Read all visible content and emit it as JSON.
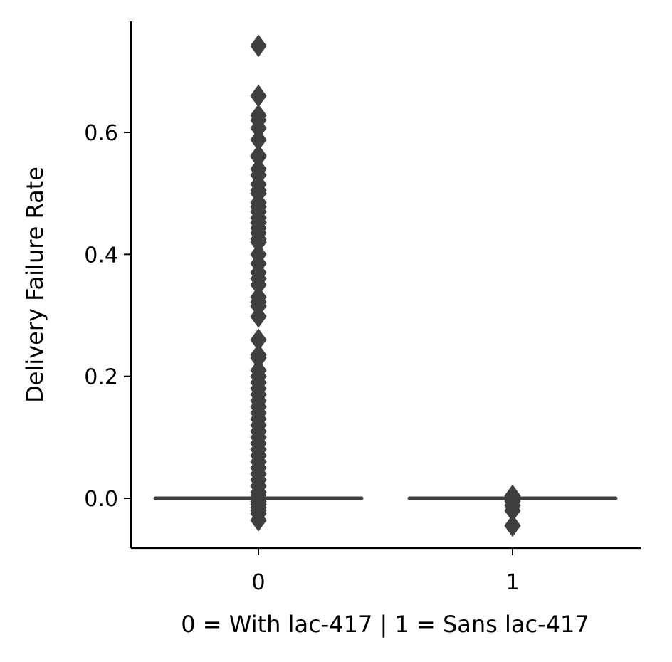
{
  "chart_data": {
    "type": "box",
    "categories": [
      "0",
      "1"
    ],
    "xlabel": "0 = With lac-417 | 1 = Sans lac-417",
    "ylabel": "Delivery Failure Rate",
    "ylim": [
      -0.082,
      0.782
    ],
    "yticks": [
      0.0,
      0.2,
      0.4,
      0.6
    ],
    "ytick_labels": [
      "0.0",
      "0.2",
      "0.4",
      "0.6"
    ],
    "grid": false,
    "box_color": "#3f3f3f",
    "series": [
      {
        "category": "0",
        "q1": 0.0,
        "median": 0.0,
        "q3": 0.0,
        "whisker_low": 0.0,
        "whisker_high": 0.0,
        "outliers": [
          0.742,
          0.66,
          0.628,
          0.62,
          0.607,
          0.588,
          0.562,
          0.56,
          0.54,
          0.53,
          0.515,
          0.505,
          0.5,
          0.485,
          0.478,
          0.47,
          0.46,
          0.452,
          0.443,
          0.435,
          0.425,
          0.42,
          0.4,
          0.385,
          0.37,
          0.36,
          0.35,
          0.33,
          0.322,
          0.315,
          0.298,
          0.26,
          0.235,
          0.23,
          0.21,
          0.2,
          0.19,
          0.18,
          0.17,
          0.16,
          0.15,
          0.14,
          0.13,
          0.12,
          0.11,
          0.1,
          0.09,
          0.08,
          0.07,
          0.06,
          0.05,
          0.04,
          0.03,
          0.02,
          0.01,
          0.005,
          -0.005,
          -0.01,
          -0.015,
          -0.02,
          -0.025,
          -0.036
        ]
      },
      {
        "category": "1",
        "q1": 0.0,
        "median": 0.0,
        "q3": 0.0,
        "whisker_low": 0.0,
        "whisker_high": 0.0,
        "outliers": [
          0.004,
          -0.005,
          -0.012,
          -0.02,
          -0.045
        ]
      }
    ]
  }
}
